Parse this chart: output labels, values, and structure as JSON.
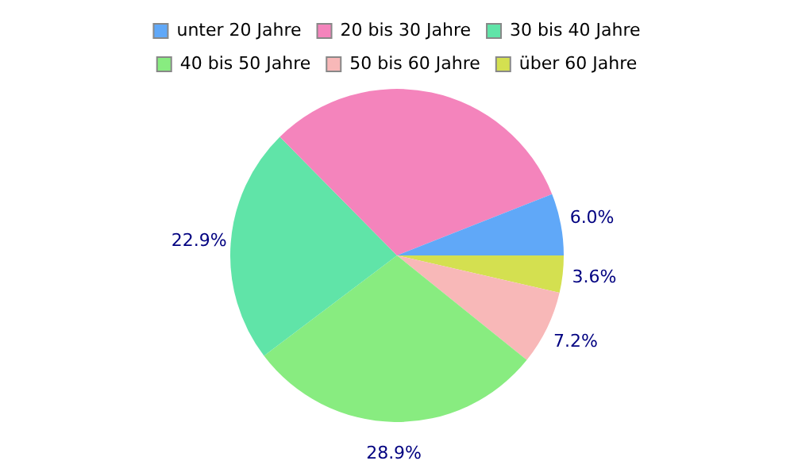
{
  "chart_data": {
    "type": "pie",
    "categories": [
      "unter 20 Jahre",
      "20 bis 30 Jahre",
      "30 bis 40 Jahre",
      "40 bis 50 Jahre",
      "50 bis 60 Jahre",
      "über 60 Jahre"
    ],
    "values": [
      6.0,
      31.4,
      22.9,
      28.9,
      7.2,
      3.6
    ],
    "colors": [
      "#60a8f8",
      "#f484bc",
      "#60e4a8",
      "#88ec80",
      "#f8b8b8",
      "#d4e050"
    ],
    "value_labels": [
      "6.0%",
      null,
      "22.9%",
      "28.9%",
      "7.2%",
      "3.6%"
    ],
    "legend": "top"
  }
}
